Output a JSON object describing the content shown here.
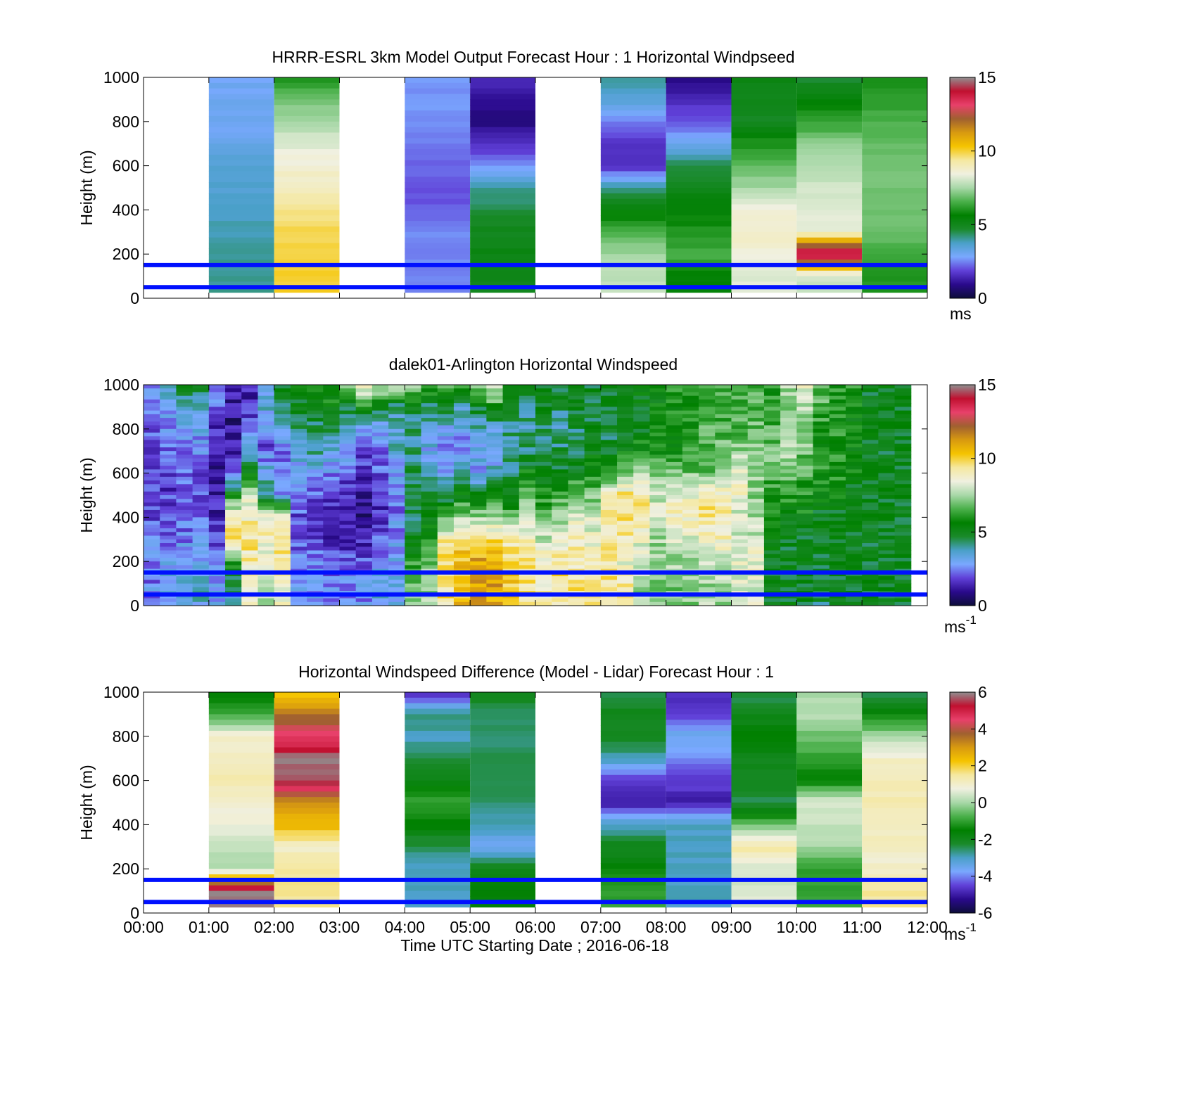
{
  "figure": {
    "xlabel": "Time UTC  Starting Date ; 2016-06-18",
    "x_tick_labels": [
      "00:00",
      "01:00",
      "02:00",
      "03:00",
      "04:00",
      "05:00",
      "06:00",
      "07:00",
      "08:00",
      "09:00",
      "10:00",
      "11:00",
      "12:00"
    ]
  },
  "colors": {
    "reference_lines": "#0010ff",
    "speed_colormap": [
      "#0d0d3a",
      "#2a0a8c",
      "#6040d8",
      "#7aa8ff",
      "#4aa0c8",
      "#1a8a2a",
      "#008000",
      "#4ab04a",
      "#a8d8a8",
      "#f0f0e0",
      "#f5e8a0",
      "#f5c400",
      "#d89a10",
      "#a06030",
      "#e8406a",
      "#c01030",
      "#909090"
    ],
    "diff_colormap": [
      "#0d0d3a",
      "#2a0a8c",
      "#6040d8",
      "#7aa8ff",
      "#4aa0c8",
      "#1a8a2a",
      "#008000",
      "#4ab04a",
      "#a8d8a8",
      "#f0f0e0",
      "#f5e8a0",
      "#f5c400",
      "#d89a10",
      "#a06030",
      "#e8406a",
      "#c01030",
      "#909090"
    ]
  },
  "chart_data": [
    {
      "type": "heatmap",
      "title": "HRRR-ESRL 3km Model Output   Forecast Hour : 1 Horizontal Windpseed",
      "ylabel": "Height (m)",
      "ylim": [
        0,
        1000
      ],
      "y_ticks": [
        "0",
        "200",
        "400",
        "600",
        "800",
        "1000"
      ],
      "xlim_hours": [
        0,
        12
      ],
      "colorbar": {
        "min": 0,
        "max": 15,
        "ticks": [
          "0",
          "5",
          "10",
          "15"
        ],
        "unit": "ms",
        "unit_sup": ""
      },
      "reference_lines_m": [
        50,
        150
      ],
      "levels_m": [
        1000,
        900,
        800,
        700,
        600,
        500,
        400,
        300,
        200,
        100,
        0
      ],
      "columns": [
        {
          "start_h": 1,
          "end_h": 2,
          "values": [
            3.0,
            3.0,
            3.0,
            3.2,
            3.5,
            3.6,
            3.8,
            3.9,
            4.0,
            4.0
          ]
        },
        {
          "start_h": 2,
          "end_h": 3,
          "values": [
            6.0,
            7.0,
            7.6,
            8.2,
            8.6,
            9.0,
            9.5,
            9.8,
            10.0,
            10.0
          ]
        },
        {
          "start_h": 4,
          "end_h": 5,
          "values": [
            2.6,
            2.6,
            2.6,
            2.4,
            2.2,
            2.0,
            2.2,
            2.5,
            2.5,
            2.5
          ]
        },
        {
          "start_h": 5,
          "end_h": 6,
          "values": [
            1.5,
            1.0,
            0.8,
            1.5,
            2.5,
            4.0,
            4.5,
            5.0,
            5.2,
            5.0
          ]
        },
        {
          "start_h": 7,
          "end_h": 8,
          "values": [
            4.0,
            3.5,
            2.5,
            1.5,
            1.5,
            4.0,
            5.5,
            6.5,
            7.5,
            7.8
          ]
        },
        {
          "start_h": 8,
          "end_h": 9,
          "values": [
            0.7,
            1.5,
            2.0,
            3.0,
            4.5,
            5.0,
            5.5,
            6.0,
            6.5,
            5.5
          ]
        },
        {
          "start_h": 9,
          "end_h": 10,
          "values": [
            5.3,
            5.0,
            4.8,
            6.0,
            6.8,
            7.5,
            8.5,
            8.8,
            8.5,
            8.2
          ]
        },
        {
          "start_h": 10,
          "end_h": 11,
          "values": [
            4.5,
            5.5,
            6.2,
            7.2,
            7.6,
            8.0,
            8.2,
            8.4,
            14.5,
            8.0
          ]
        },
        {
          "start_h": 11,
          "end_h": 12,
          "values": [
            6.0,
            6.2,
            6.5,
            6.8,
            7.0,
            7.0,
            7.0,
            7.0,
            6.5,
            6.0
          ]
        }
      ]
    },
    {
      "type": "heatmap",
      "title": "dalek01-Arlington  Horizontal Windspeed",
      "ylabel": "Height (m)",
      "ylim": [
        0,
        1000
      ],
      "y_ticks": [
        "0",
        "200",
        "400",
        "600",
        "800",
        "1000"
      ],
      "xlim_hours": [
        0,
        12
      ],
      "colorbar": {
        "min": 0,
        "max": 15,
        "ticks": [
          "0",
          "5",
          "10",
          "15"
        ],
        "unit": "ms",
        "unit_sup": "-1"
      },
      "reference_lines_m": [
        50,
        150
      ],
      "data_end_h": 11.75,
      "levels_m": [
        1000,
        900,
        800,
        700,
        600,
        500,
        400,
        300,
        200,
        100,
        0
      ],
      "column_width_h": 0.25,
      "columns_profiles": [
        [
          3.0,
          2.5,
          2.0,
          2.0,
          2.2,
          2.0,
          2.0,
          2.2,
          2.5,
          2.5
        ],
        [
          4.0,
          3.0,
          2.5,
          2.0,
          1.8,
          1.8,
          2.0,
          2.3,
          2.8,
          3.0
        ],
        [
          5.0,
          4.0,
          3.0,
          2.5,
          2.0,
          2.0,
          2.2,
          2.5,
          3.0,
          3.5
        ],
        [
          4.5,
          3.5,
          3.0,
          2.5,
          2.0,
          1.8,
          2.0,
          2.5,
          3.0,
          3.5
        ],
        [
          2.5,
          2.0,
          1.5,
          1.0,
          1.0,
          1.2,
          1.5,
          2.0,
          2.5,
          3.0
        ],
        [
          1.5,
          1.0,
          1.0,
          1.5,
          2.0,
          6.0,
          9.0,
          9.5,
          6.0,
          4.0
        ],
        [
          1.5,
          1.5,
          2.5,
          3.0,
          5.0,
          8.0,
          9.0,
          9.5,
          9.0,
          8.5
        ],
        [
          3.0,
          3.5,
          2.5,
          2.0,
          3.5,
          4.0,
          8.5,
          9.0,
          8.0,
          7.5
        ],
        [
          5.0,
          4.5,
          3.0,
          2.5,
          2.0,
          3.0,
          9.0,
          9.5,
          9.0,
          8.5
        ],
        [
          5.5,
          5.0,
          4.0,
          3.5,
          2.5,
          2.5,
          2.0,
          2.0,
          2.5,
          3.0
        ],
        [
          5.5,
          5.0,
          4.5,
          4.0,
          3.0,
          2.0,
          1.5,
          2.0,
          2.5,
          3.0
        ],
        [
          6.0,
          5.5,
          4.5,
          3.5,
          2.5,
          2.0,
          1.5,
          1.5,
          2.0,
          2.5
        ],
        [
          7.0,
          5.0,
          4.0,
          3.0,
          2.0,
          1.5,
          1.5,
          1.5,
          2.0,
          2.5
        ],
        [
          9.0,
          6.0,
          3.0,
          2.0,
          1.5,
          1.0,
          1.0,
          1.5,
          2.0,
          2.5
        ],
        [
          8.0,
          5.0,
          3.0,
          2.5,
          2.0,
          1.5,
          1.5,
          2.0,
          3.0,
          3.5
        ],
        [
          8.5,
          4.0,
          3.5,
          3.5,
          3.0,
          2.5,
          2.5,
          2.5,
          3.0,
          3.0
        ],
        [
          7.5,
          5.0,
          4.0,
          4.0,
          4.5,
          4.5,
          4.5,
          5.0,
          6.0,
          7.0
        ],
        [
          6.5,
          4.5,
          3.5,
          3.0,
          4.0,
          5.0,
          5.0,
          6.0,
          7.0,
          7.5
        ],
        [
          7.0,
          5.0,
          3.0,
          2.5,
          3.0,
          4.5,
          6.5,
          9.0,
          9.5,
          9.5
        ],
        [
          6.0,
          4.0,
          3.0,
          2.5,
          3.5,
          5.5,
          7.5,
          9.5,
          10.5,
          10.5
        ],
        [
          7.0,
          5.0,
          3.5,
          3.0,
          3.0,
          5.0,
          7.5,
          9.5,
          11.0,
          11.0
        ],
        [
          8.5,
          6.0,
          3.5,
          3.0,
          3.5,
          5.5,
          7.5,
          9.5,
          11.0,
          11.0
        ],
        [
          5.0,
          4.5,
          4.0,
          4.0,
          4.5,
          5.5,
          7.0,
          9.0,
          10.0,
          10.0
        ],
        [
          5.0,
          4.5,
          4.0,
          4.5,
          5.5,
          6.5,
          8.0,
          9.0,
          9.5,
          9.5
        ],
        [
          5.0,
          5.0,
          4.5,
          4.5,
          5.0,
          6.0,
          7.0,
          8.0,
          9.0,
          9.0
        ],
        [
          5.0,
          4.5,
          4.0,
          4.5,
          5.0,
          6.5,
          7.5,
          8.5,
          9.5,
          9.5
        ],
        [
          5.5,
          5.0,
          4.5,
          4.5,
          5.5,
          7.0,
          8.5,
          9.0,
          9.0,
          9.5
        ],
        [
          5.0,
          4.5,
          5.0,
          5.0,
          6.0,
          7.0,
          8.0,
          8.5,
          9.0,
          9.5
        ],
        [
          5.0,
          5.0,
          4.5,
          5.0,
          6.0,
          9.0,
          9.5,
          9.0,
          9.5,
          9.5
        ],
        [
          5.5,
          5.0,
          5.0,
          5.5,
          7.0,
          9.5,
          9.5,
          9.0,
          8.5,
          9.0
        ],
        [
          5.5,
          5.0,
          5.0,
          6.0,
          7.5,
          9.5,
          9.0,
          8.5,
          8.0,
          7.5
        ],
        [
          5.5,
          5.5,
          5.5,
          6.0,
          7.0,
          8.0,
          8.0,
          7.5,
          7.5,
          7.0
        ],
        [
          6.0,
          6.0,
          5.5,
          6.0,
          7.0,
          8.5,
          9.0,
          8.0,
          7.5,
          7.0
        ],
        [
          6.0,
          6.0,
          6.0,
          6.5,
          7.0,
          8.5,
          9.0,
          8.0,
          7.5,
          7.0
        ],
        [
          6.5,
          6.0,
          6.5,
          6.5,
          7.0,
          9.0,
          9.5,
          8.5,
          8.0,
          7.5
        ],
        [
          6.5,
          6.0,
          6.5,
          7.0,
          7.5,
          9.0,
          9.0,
          9.0,
          8.0,
          7.5
        ],
        [
          6.5,
          6.5,
          6.5,
          7.5,
          8.5,
          8.5,
          8.0,
          8.0,
          8.5,
          8.0
        ],
        [
          6.5,
          6.5,
          7.0,
          7.5,
          7.5,
          7.0,
          7.5,
          8.0,
          8.5,
          8.0
        ],
        [
          6.0,
          6.0,
          6.5,
          7.0,
          6.5,
          6.0,
          5.5,
          5.0,
          5.0,
          5.0
        ],
        [
          7.5,
          7.0,
          7.0,
          7.5,
          7.0,
          6.0,
          5.5,
          5.0,
          5.0,
          5.0
        ],
        [
          8.5,
          7.5,
          7.5,
          7.0,
          6.5,
          6.0,
          5.5,
          5.0,
          5.0,
          5.0
        ],
        [
          7.0,
          6.5,
          6.0,
          6.0,
          6.0,
          5.5,
          5.0,
          5.0,
          4.5,
          4.5
        ],
        [
          6.0,
          6.0,
          6.0,
          6.0,
          6.0,
          5.5,
          5.0,
          5.0,
          5.0,
          5.0
        ],
        [
          6.0,
          5.5,
          5.5,
          5.5,
          5.5,
          5.0,
          5.0,
          5.0,
          5.0,
          5.0
        ],
        [
          5.0,
          5.0,
          5.0,
          5.0,
          5.0,
          5.0,
          5.0,
          5.0,
          5.0,
          5.0
        ],
        [
          5.0,
          5.0,
          5.0,
          5.0,
          5.0,
          5.0,
          5.0,
          5.0,
          5.0,
          5.0
        ],
        [
          5.0,
          5.0,
          5.0,
          5.0,
          5.0,
          5.0,
          5.0,
          5.0,
          5.0,
          5.0
        ]
      ]
    },
    {
      "type": "heatmap",
      "title": "Horizontal Windspeed Difference (Model - Lidar) Forecast Hour : 1",
      "ylabel": "Height (m)",
      "ylim": [
        0,
        1000
      ],
      "y_ticks": [
        "0",
        "200",
        "400",
        "600",
        "800",
        "1000"
      ],
      "xlim_hours": [
        0,
        12
      ],
      "colorbar": {
        "min": -6,
        "max": 6,
        "ticks": [
          "-6",
          "-4",
          "-2",
          "0",
          "2",
          "4",
          "6"
        ],
        "unit": "ms",
        "unit_sup": "-1"
      },
      "reference_lines_m": [
        50,
        150
      ],
      "levels_m": [
        1000,
        900,
        800,
        700,
        600,
        500,
        400,
        300,
        200,
        100,
        0
      ],
      "columns": [
        {
          "start_h": 1,
          "end_h": 2,
          "values": [
            -1.8,
            -1.0,
            1.0,
            1.2,
            1.3,
            1.0,
            0.8,
            0.3,
            0.0,
            5.8
          ]
        },
        {
          "start_h": 2,
          "end_h": 3,
          "values": [
            2.0,
            3.5,
            4.5,
            5.8,
            5.8,
            3.0,
            2.5,
            1.0,
            1.5,
            1.5
          ]
        },
        {
          "start_h": 4,
          "end_h": 5,
          "values": [
            -5.0,
            -2.5,
            -3.0,
            -2.5,
            -1.8,
            -1.0,
            -1.5,
            -2.5,
            -3.0,
            -3.0
          ]
        },
        {
          "start_h": 5,
          "end_h": 6,
          "values": [
            -2.0,
            -2.5,
            -2.5,
            -2.5,
            -2.5,
            -2.5,
            -3.0,
            -3.5,
            -2.0,
            -1.5
          ]
        },
        {
          "start_h": 7,
          "end_h": 8,
          "values": [
            -2.5,
            -2.0,
            -2.0,
            -3.0,
            -4.5,
            -5.0,
            -3.0,
            -2.0,
            -1.5,
            -1.0
          ]
        },
        {
          "start_h": 8,
          "end_h": 9,
          "values": [
            -4.8,
            -4.5,
            -3.5,
            -4.0,
            -4.5,
            -5.0,
            -3.0,
            -3.0,
            -3.0,
            -3.0
          ]
        },
        {
          "start_h": 9,
          "end_h": 10,
          "values": [
            -2.5,
            -2.0,
            -1.5,
            -2.0,
            -2.0,
            -2.5,
            -0.5,
            1.5,
            0.5,
            0.5
          ]
        },
        {
          "start_h": 10,
          "end_h": 11,
          "values": [
            0.0,
            0.2,
            -0.5,
            -1.0,
            -1.5,
            0.5,
            0.3,
            0.0,
            -1.0,
            -1.0
          ]
        },
        {
          "start_h": 11,
          "end_h": 12,
          "values": [
            -2.5,
            -1.5,
            0.0,
            1.0,
            1.2,
            1.3,
            1.2,
            1.0,
            1.0,
            1.5
          ]
        }
      ]
    }
  ]
}
